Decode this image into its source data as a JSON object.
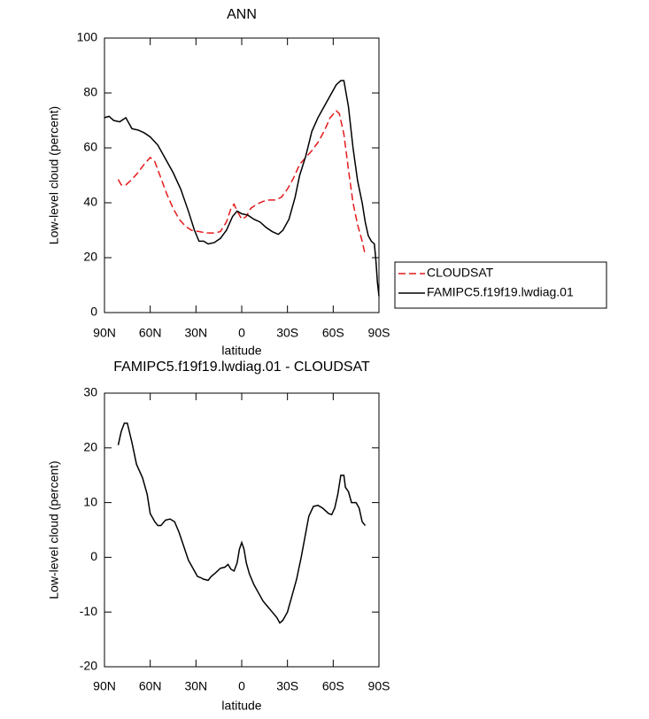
{
  "chart_data": [
    {
      "type": "line",
      "title": "ANN",
      "xlabel": "latitude",
      "ylabel": "Low-level cloud (percent)",
      "xlim": [
        90,
        -90
      ],
      "xticks": [
        {
          "value": 90,
          "label": "90N"
        },
        {
          "value": 60,
          "label": "60N"
        },
        {
          "value": 30,
          "label": "30N"
        },
        0,
        {
          "value": -30,
          "label": "30S"
        },
        {
          "value": -60,
          "label": "60S"
        },
        {
          "value": -90,
          "label": "90S"
        }
      ],
      "ylim": [
        0,
        100
      ],
      "yticks": [
        0,
        20,
        40,
        60,
        80,
        100
      ],
      "legend": "outside-right",
      "series": [
        {
          "name": "CLOUDSAT",
          "color": "#e41a1c",
          "line_style": "dashed",
          "x": [
            81,
            79,
            76,
            72,
            68,
            64,
            60,
            57,
            53,
            49,
            45,
            41,
            37,
            33,
            28,
            23,
            18,
            14,
            10,
            7,
            5,
            3,
            0,
            -3,
            -6,
            -10,
            -14,
            -18,
            -22,
            -26,
            -30,
            -34,
            -38,
            -42,
            -46,
            -50,
            -54,
            -58,
            -62,
            -64,
            -67,
            -70,
            -73,
            -76,
            -79,
            -81
          ],
          "values": [
            48.5,
            46.5,
            46.5,
            48.5,
            51,
            54,
            56.5,
            55,
            49,
            43,
            38,
            34,
            31.5,
            30,
            29.5,
            29,
            29,
            29.5,
            33,
            38,
            39.5,
            37,
            34,
            35,
            38,
            39.5,
            40.5,
            41,
            41,
            42,
            45,
            49,
            54,
            56.5,
            59,
            62,
            66,
            71,
            73.5,
            72.5,
            65,
            52,
            40,
            32,
            26,
            21
          ]
        },
        {
          "name": "FAMIPC5.f19f19.lwdiag.01",
          "color": "#000000",
          "line_style": "solid",
          "x": [
            90,
            87,
            84,
            80,
            76,
            72,
            68,
            64,
            60,
            55,
            50,
            45,
            40,
            35,
            31,
            28,
            25,
            22,
            18,
            14,
            10,
            6,
            3,
            0,
            -4,
            -8,
            -12,
            -16,
            -20,
            -24,
            -27,
            -31,
            -35,
            -38,
            -42,
            -46,
            -50,
            -54,
            -58,
            -62,
            -65,
            -67,
            -70,
            -73,
            -76,
            -79,
            -81,
            -83,
            -85,
            -87,
            -88,
            -89,
            -90
          ],
          "values": [
            71,
            71.5,
            70,
            69.5,
            71,
            67,
            66.5,
            65.5,
            64,
            61,
            56,
            51,
            45,
            37,
            30,
            26,
            26,
            25,
            25.5,
            27,
            30,
            35,
            37,
            36,
            35.5,
            34,
            33,
            31,
            29.5,
            28.5,
            30,
            34,
            42,
            50,
            57,
            66,
            71,
            75,
            79,
            83,
            84.5,
            84.5,
            75,
            60,
            48,
            40,
            33,
            28,
            26,
            25,
            19,
            11,
            6
          ]
        }
      ]
    },
    {
      "type": "line",
      "title": "FAMIPC5.f19f19.lwdiag.01 - CLOUDSAT",
      "xlabel": "latitude",
      "ylabel": "Low-level cloud (percent)",
      "xlim": [
        90,
        -90
      ],
      "xticks": [
        {
          "value": 90,
          "label": "90N"
        },
        {
          "value": 60,
          "label": "60N"
        },
        {
          "value": 30,
          "label": "30N"
        },
        0,
        {
          "value": -30,
          "label": "30S"
        },
        {
          "value": -60,
          "label": "60S"
        },
        {
          "value": -90,
          "label": "90S"
        }
      ],
      "ylim": [
        -20,
        30
      ],
      "yticks": [
        -20,
        -10,
        0,
        10,
        20,
        30
      ],
      "series": [
        {
          "color": "#000000",
          "line_style": "solid",
          "x": [
            81,
            79,
            77,
            75,
            72,
            69,
            65,
            62,
            60,
            57,
            55,
            53,
            50,
            47,
            44,
            41,
            38,
            35,
            32,
            29,
            27,
            25,
            22,
            20,
            17,
            14,
            11,
            9,
            7,
            5,
            3,
            1.5,
            0,
            -1.5,
            -3,
            -5,
            -8,
            -11,
            -14,
            -17,
            -20,
            -23,
            -25,
            -27,
            -30,
            -33,
            -36,
            -39,
            -42,
            -44,
            -47,
            -50,
            -53,
            -57,
            -59,
            -61,
            -63,
            -65,
            -67,
            -68,
            -70,
            -72,
            -75,
            -77,
            -79,
            -81
          ],
          "values": [
            20.5,
            23,
            24.5,
            24.5,
            21,
            17,
            14.5,
            11.5,
            8,
            6.5,
            5.8,
            5.8,
            6.8,
            7,
            6.5,
            4.5,
            2,
            -0.5,
            -2,
            -3.5,
            -3.7,
            -4,
            -4.2,
            -3.5,
            -2.8,
            -2,
            -1.8,
            -1.3,
            -2.2,
            -2.5,
            -1,
            1.5,
            2.7,
            1.5,
            -1,
            -3,
            -5,
            -6.5,
            -8,
            -9,
            -10,
            -11,
            -12,
            -11.5,
            -10,
            -7,
            -4,
            0,
            4.5,
            7.5,
            9.3,
            9.5,
            9,
            8,
            7.8,
            9,
            11.5,
            15,
            15,
            12.8,
            12,
            10,
            10,
            9,
            6.5,
            5.8
          ]
        }
      ]
    }
  ]
}
